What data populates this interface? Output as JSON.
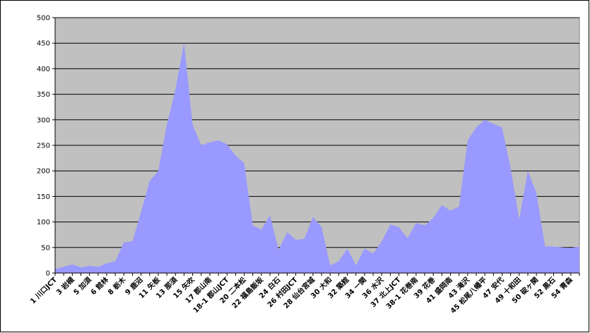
{
  "chart_data": {
    "type": "area",
    "categories": [
      "1 川口JCT",
      null,
      "3 岩槻",
      null,
      "5 加須",
      null,
      "6 館林",
      null,
      "8 栃木",
      null,
      "9 鹿沼",
      null,
      "11 矢板",
      null,
      "13 那須",
      null,
      "15 矢吹",
      null,
      "17 郡山南",
      null,
      "18-1 郡山JCT",
      null,
      "20 二本松",
      null,
      "22 福島飯坂",
      null,
      "24 白石",
      null,
      "26 村田JCT",
      null,
      "28 仙台宮城",
      null,
      "30 大和",
      null,
      "32 築館",
      null,
      "34 一関",
      null,
      "36 水沢",
      null,
      "37 北上JCT",
      null,
      "38-1 花巻南",
      null,
      "39 花巻",
      null,
      "41 盛岡南",
      null,
      "43 滝沢",
      null,
      "45 松尾八幡平",
      null,
      "47 安代",
      null,
      "49 十和田",
      null,
      "50 碇ヶ関",
      null,
      "52 黒石",
      null,
      "54 青森",
      null
    ],
    "values": [
      8,
      12,
      17,
      11,
      14,
      12,
      19,
      23,
      60,
      62,
      120,
      180,
      200,
      290,
      360,
      450,
      290,
      250,
      256,
      260,
      252,
      230,
      215,
      93,
      85,
      113,
      45,
      80,
      65,
      67,
      110,
      90,
      15,
      23,
      48,
      15,
      48,
      38,
      62,
      95,
      90,
      68,
      98,
      93,
      108,
      133,
      122,
      130,
      260,
      285,
      300,
      292,
      285,
      205,
      105,
      200,
      157,
      52,
      52,
      50,
      49,
      52
    ],
    "color": "#9999ff",
    "ylim": [
      0,
      500
    ],
    "yticks": [
      0,
      50,
      100,
      150,
      200,
      250,
      300,
      350,
      400,
      450,
      500
    ],
    "grid": true
  }
}
